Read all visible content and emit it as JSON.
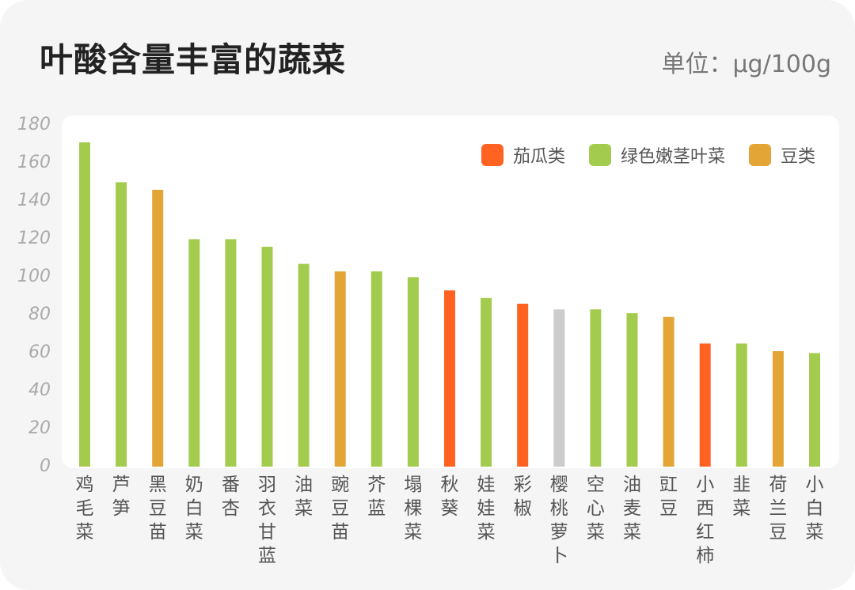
{
  "title": "叶酸含量丰富的蔬菜",
  "unit": "单位：μg/100g",
  "legend": [
    {
      "label": "茄瓜类",
      "color": "#ff6221"
    },
    {
      "label": "绿色嫩茎叶菜",
      "color": "#a3cc4f"
    },
    {
      "label": "豆类",
      "color": "#e3a535"
    }
  ],
  "chart_data": {
    "type": "bar",
    "title": "叶酸含量丰富的蔬菜",
    "ylabel": "",
    "ylim": [
      0,
      180
    ],
    "yticks": [
      0,
      20,
      40,
      60,
      80,
      100,
      120,
      140,
      160,
      180
    ],
    "grid": false,
    "legend_position": "top-right",
    "categories": [
      "鸡毛菜",
      "芦笋",
      "黑豆苗",
      "奶白菜",
      "番杏",
      "羽衣甘蓝",
      "油菜",
      "豌豆苗",
      "芥蓝",
      "塌棵菜",
      "秋葵",
      "娃娃菜",
      "彩椒",
      "樱桃萝卜",
      "空心菜",
      "油麦菜",
      "豇豆",
      "小西红柿",
      "韭菜",
      "荷兰豆",
      "小白菜"
    ],
    "values": [
      170,
      149,
      145,
      119,
      119,
      115,
      106,
      102,
      102,
      99,
      92,
      88,
      85,
      82,
      82,
      80,
      78,
      64,
      64,
      60,
      59
    ],
    "colors": [
      "#a3cc4f",
      "#a3cc4f",
      "#e3a535",
      "#a3cc4f",
      "#a3cc4f",
      "#a3cc4f",
      "#a3cc4f",
      "#e3a535",
      "#a3cc4f",
      "#a3cc4f",
      "#ff6221",
      "#a3cc4f",
      "#ff6221",
      "#cccccc",
      "#a3cc4f",
      "#a3cc4f",
      "#e3a535",
      "#ff6221",
      "#a3cc4f",
      "#e3a535",
      "#a3cc4f"
    ]
  }
}
